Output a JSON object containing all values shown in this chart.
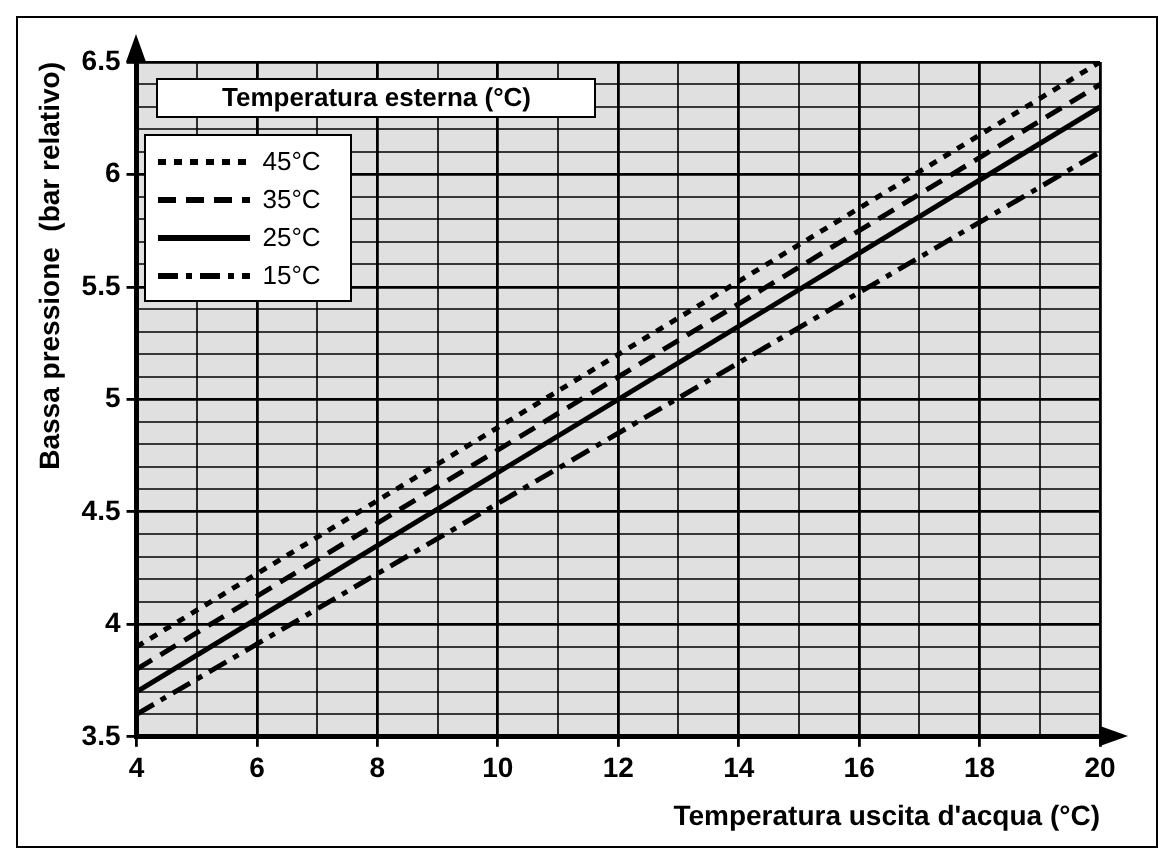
{
  "chart_data": {
    "type": "line",
    "xlabel": "Temperatura uscita d'acqua (°C)",
    "ylabel": "Bassa pressione  (bar relativo)",
    "legend_title": "Temperatura esterna (°C)",
    "legend": "top left",
    "grid": true,
    "marker": "none",
    "x": [
      4,
      20
    ],
    "series": [
      {
        "name": "45°C",
        "color": "#000000",
        "line_style": "dotted",
        "values": [
          3.9,
          6.5
        ]
      },
      {
        "name": "35°C",
        "color": "#000000",
        "line_style": "dashed",
        "values": [
          3.8,
          6.4
        ]
      },
      {
        "name": "25°C",
        "color": "#000000",
        "line_style": "solid",
        "values": [
          3.7,
          6.3
        ]
      },
      {
        "name": "15°C",
        "color": "#000000",
        "line_style": "dashdot",
        "values": [
          3.6,
          6.1
        ]
      }
    ],
    "xlim": [
      4,
      20
    ],
    "xticks": [
      4,
      {
        "value": 5,
        "label": null
      },
      6,
      {
        "value": 7,
        "label": null
      },
      8,
      {
        "value": 9,
        "label": null
      },
      10,
      {
        "value": 11,
        "label": null
      },
      12,
      {
        "value": 13,
        "label": null
      },
      14,
      {
        "value": 15,
        "label": null
      },
      16,
      {
        "value": 17,
        "label": null
      },
      18,
      {
        "value": 19,
        "label": null
      },
      20
    ],
    "ylim": [
      3.5,
      6.5
    ],
    "yticks": [
      3.5,
      {
        "value": 3.6,
        "label": null
      },
      {
        "value": 3.7,
        "label": null
      },
      {
        "value": 3.8,
        "label": null
      },
      {
        "value": 3.9,
        "label": null
      },
      4,
      {
        "value": 4.1,
        "label": null
      },
      {
        "value": 4.2,
        "label": null
      },
      {
        "value": 4.3,
        "label": null
      },
      {
        "value": 4.4,
        "label": null
      },
      4.5,
      {
        "value": 4.6,
        "label": null
      },
      {
        "value": 4.7,
        "label": null
      },
      {
        "value": 4.8,
        "label": null
      },
      {
        "value": 4.9,
        "label": null
      },
      5,
      {
        "value": 5.1,
        "label": null
      },
      {
        "value": 5.2,
        "label": null
      },
      {
        "value": 5.3,
        "label": null
      },
      {
        "value": 5.4,
        "label": null
      },
      5.5,
      {
        "value": 5.6,
        "label": null
      },
      {
        "value": 5.7,
        "label": null
      },
      {
        "value": 5.8,
        "label": null
      },
      {
        "value": 5.9,
        "label": null
      },
      6,
      {
        "value": 6.1,
        "label": null
      },
      {
        "value": 6.2,
        "label": null
      },
      {
        "value": 6.3,
        "label": null
      },
      {
        "value": 6.4,
        "label": null
      },
      6.5
    ]
  }
}
